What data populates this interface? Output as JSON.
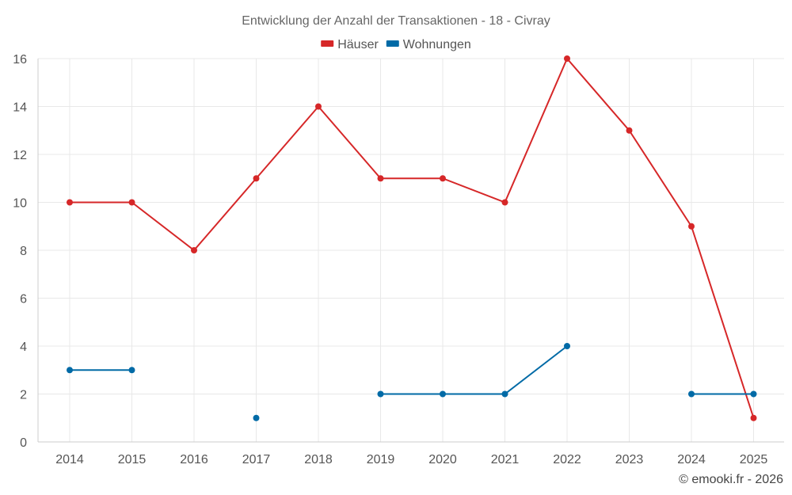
{
  "chart_data": {
    "type": "line",
    "title": "Entwicklung der Anzahl der Transaktionen - 18 - Civray",
    "x": [
      "2014",
      "2015",
      "2016",
      "2017",
      "2018",
      "2019",
      "2020",
      "2021",
      "2022",
      "2023",
      "2024",
      "2025"
    ],
    "ylim": [
      0,
      16
    ],
    "yticks": [
      0,
      2,
      4,
      6,
      8,
      10,
      12,
      14,
      16
    ],
    "grid": true,
    "legend_position": "top-center",
    "series": [
      {
        "name": "Häuser",
        "color": "#d62728",
        "values": [
          10,
          10,
          8,
          11,
          14,
          11,
          11,
          10,
          16,
          13,
          9,
          1
        ]
      },
      {
        "name": "Wohnungen",
        "color": "#006aa6",
        "values": [
          3,
          3,
          null,
          1,
          null,
          2,
          2,
          2,
          4,
          null,
          2,
          2
        ]
      }
    ]
  },
  "credit": "© emooki.fr - 2026"
}
